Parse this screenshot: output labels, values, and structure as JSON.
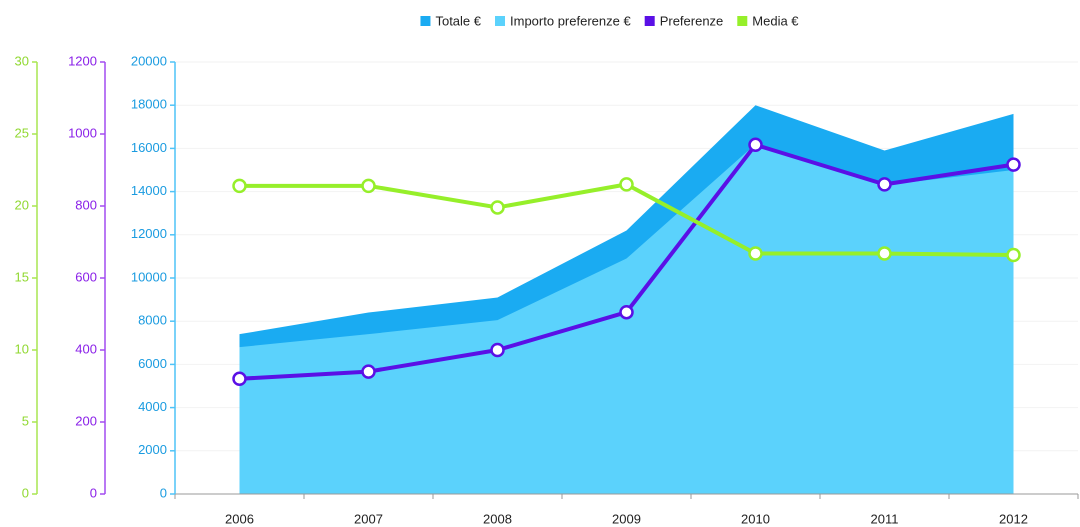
{
  "chart_data": {
    "type": "line",
    "categories": [
      "2006",
      "2007",
      "2008",
      "2009",
      "2010",
      "2011",
      "2012"
    ],
    "series": [
      {
        "name": "Totale €",
        "type": "area",
        "color": "#1aabf2",
        "axis": "y",
        "values": [
          7400,
          8400,
          9100,
          12200,
          18000,
          15900,
          17600
        ]
      },
      {
        "name": "Importo preferenze €",
        "type": "area",
        "color": "#5bd2fc",
        "axis": "y",
        "values": [
          6800,
          7400,
          8050,
          10900,
          16200,
          14300,
          15000
        ]
      },
      {
        "name": "Preferenze",
        "type": "line",
        "color": "#5a10e6",
        "axis": "y2",
        "values": [
          320,
          340,
          400,
          505,
          970,
          860,
          915
        ]
      },
      {
        "name": "Media €",
        "type": "line",
        "color": "#96ef2a",
        "axis": "y3",
        "values": [
          21.4,
          21.4,
          19.9,
          21.5,
          16.7,
          16.7,
          16.6
        ]
      }
    ],
    "ylim": [
      0,
      20000
    ],
    "yticks": [
      0,
      2000,
      4000,
      6000,
      8000,
      10000,
      12000,
      14000,
      16000,
      18000,
      20000
    ],
    "y2lim": [
      0,
      1200
    ],
    "y2ticks": [
      0,
      200,
      400,
      600,
      800,
      1000,
      1200
    ],
    "y3lim": [
      0,
      30
    ],
    "y3ticks": [
      0,
      5,
      10,
      15,
      20,
      25,
      30
    ],
    "grid": true,
    "legend": "top"
  }
}
